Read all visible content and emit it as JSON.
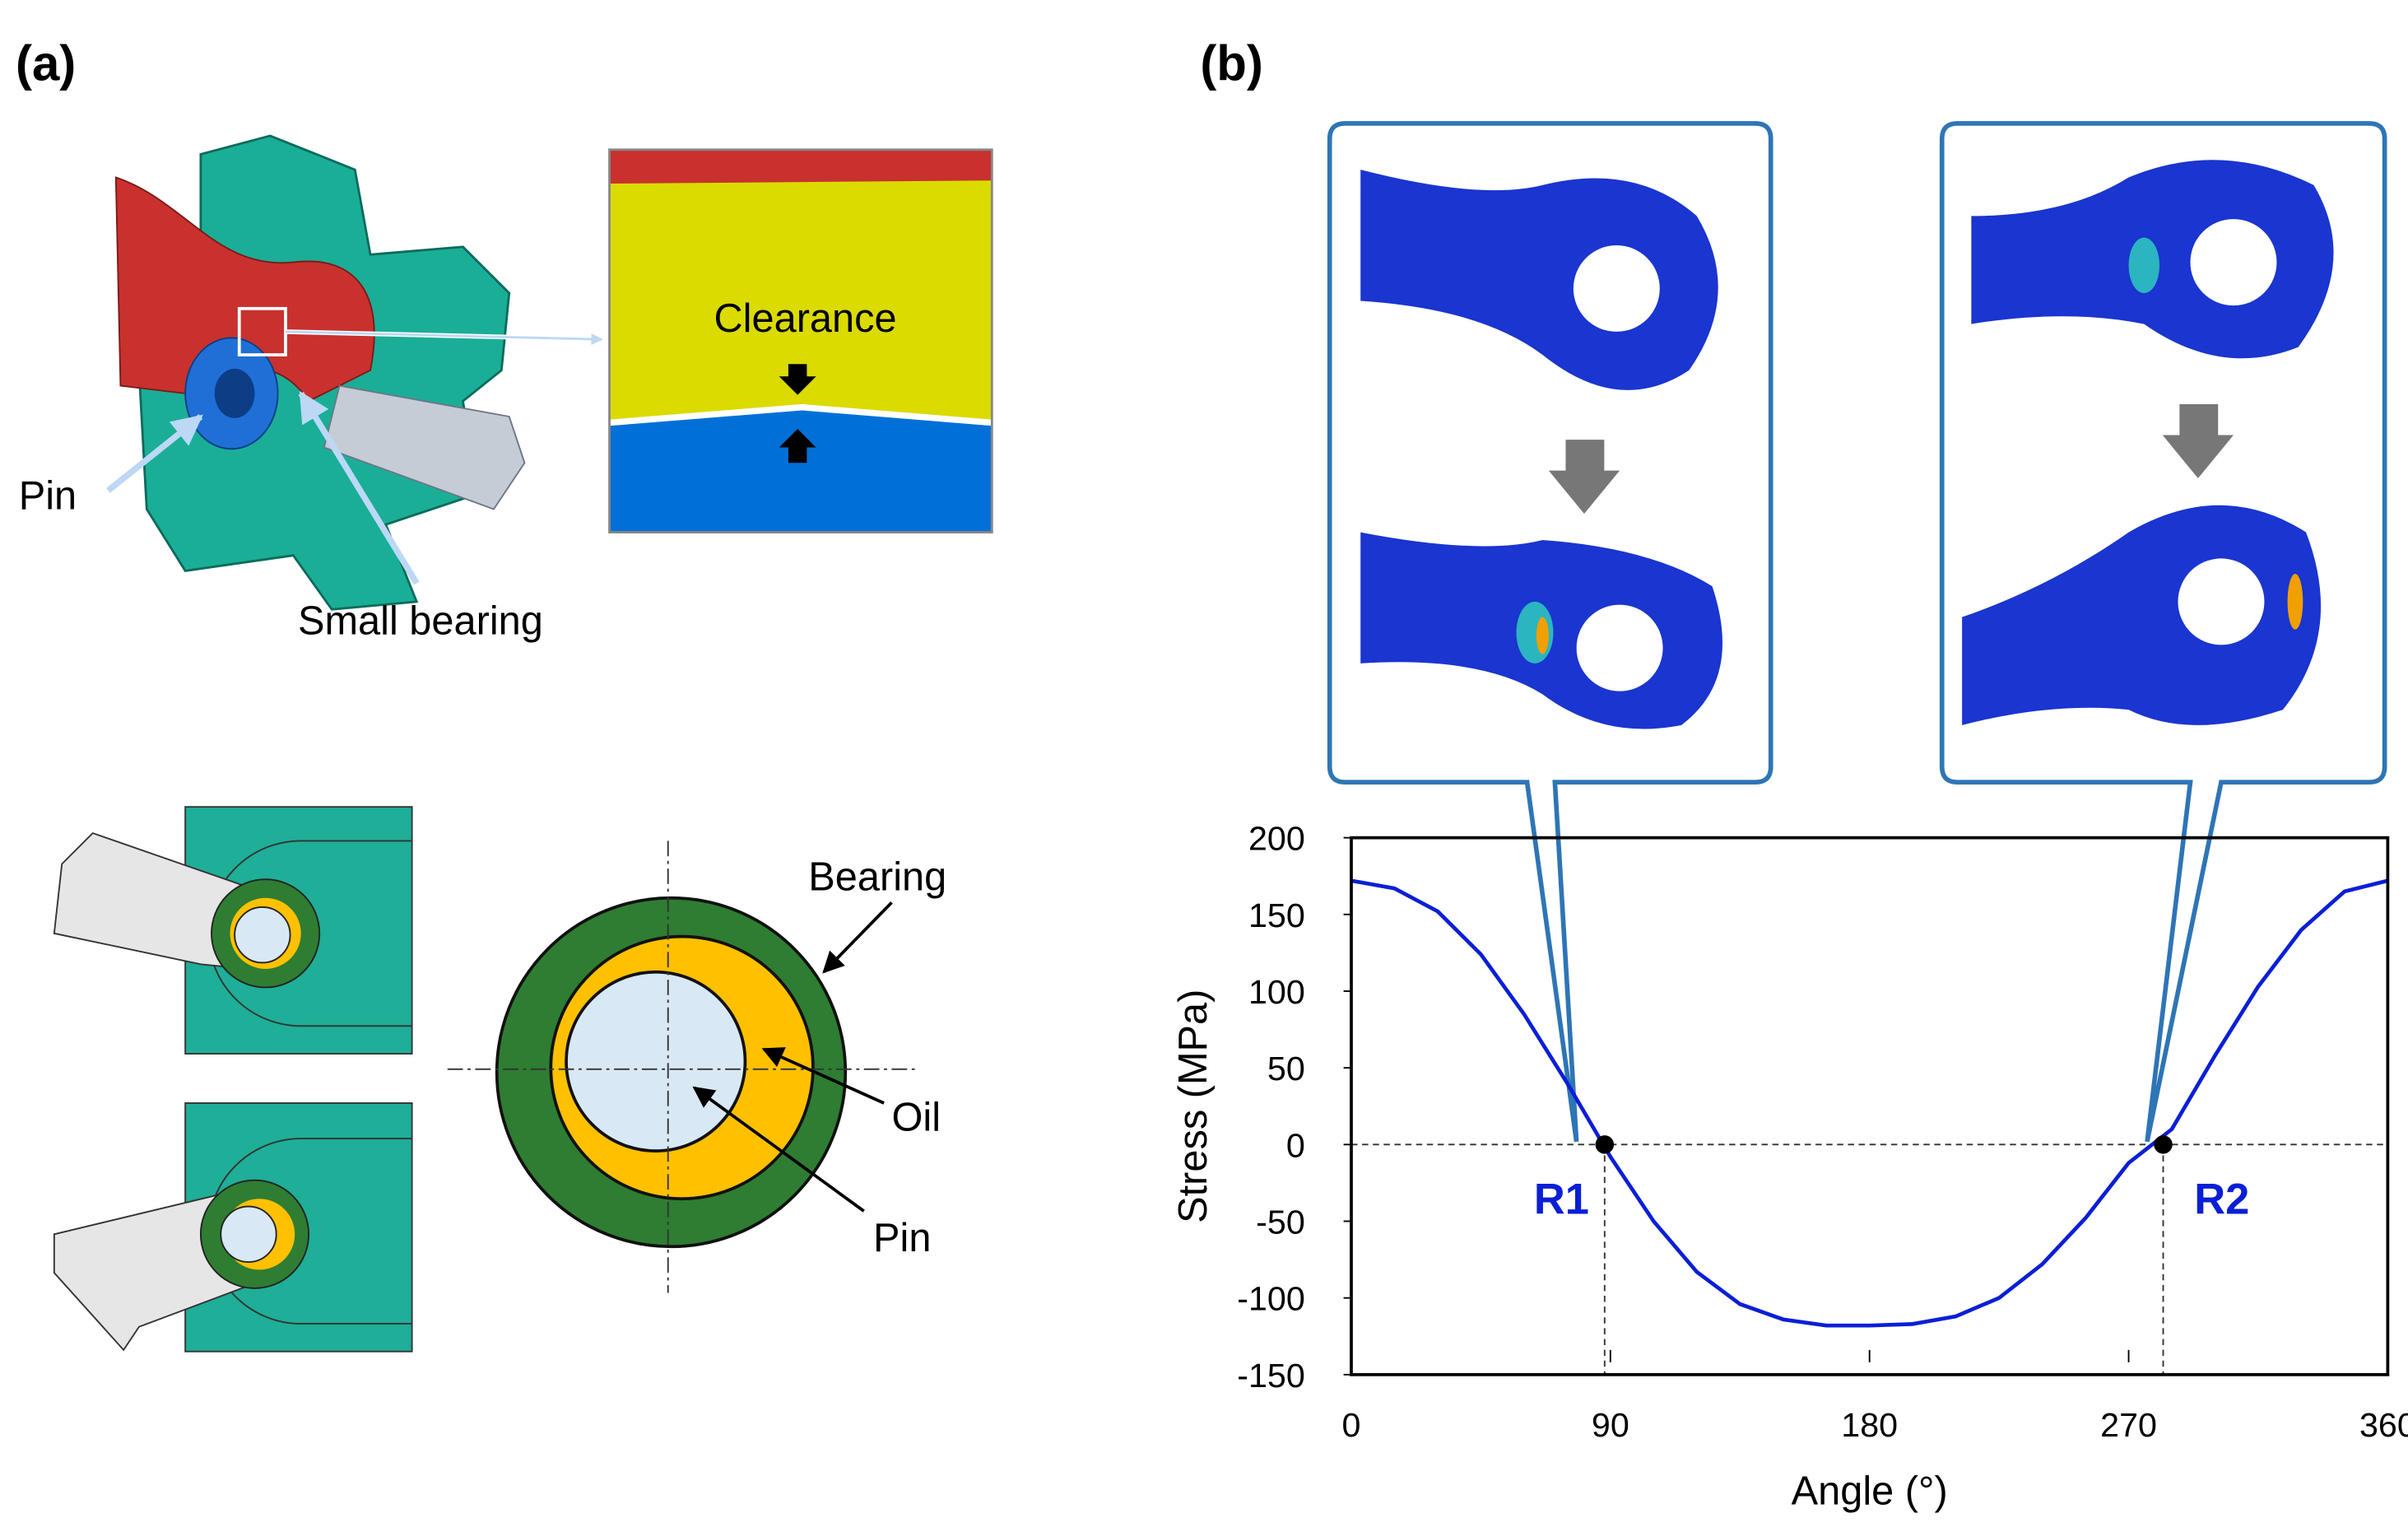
{
  "panels": [
    "(a)",
    "(b)"
  ],
  "diagram_labels": {
    "pin": "Pin",
    "small_bearing": "Small bearing",
    "clearance": "Clearance",
    "bearing": "Bearing",
    "oil": "Oil",
    "pin_section": "Pin"
  },
  "chart_data": {
    "type": "line",
    "x_label": "Angle (°)",
    "y_label": "Stress (MPa)",
    "x": [
      0,
      15,
      30,
      45,
      60,
      75,
      90,
      105,
      120,
      135,
      150,
      165,
      180,
      195,
      210,
      225,
      240,
      255,
      270,
      285,
      300,
      315,
      330,
      345,
      360
    ],
    "series": [
      {
        "color": "#0a1fd6",
        "values": [
          172,
          167,
          152,
          124,
          85,
          40,
          -8,
          -50,
          -83,
          -104,
          -114,
          -118,
          -118,
          -117,
          -112,
          -100,
          -78,
          -48,
          -12,
          10,
          58,
          103,
          140,
          165,
          172
        ]
      }
    ],
    "points": [
      {
        "label": "R1",
        "x": 88,
        "y": 0
      },
      {
        "label": "R2",
        "x": 282,
        "y": 0
      }
    ],
    "xlim": [
      0,
      360
    ],
    "ylim": [
      -150,
      200
    ],
    "xticks": [
      0,
      90,
      180,
      270,
      360
    ],
    "yticks": [
      200,
      150,
      100,
      50,
      0,
      -50,
      -100,
      -150
    ]
  }
}
